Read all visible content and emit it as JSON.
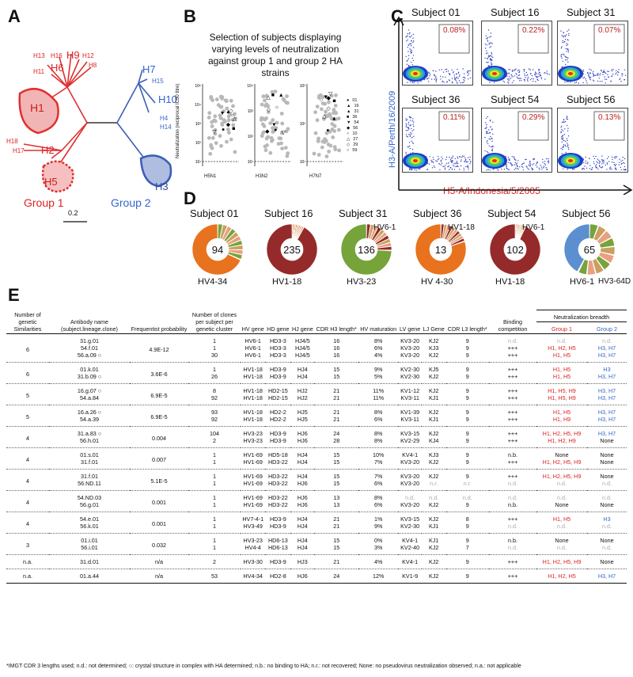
{
  "panels": {
    "a": "A",
    "b": "B",
    "c": "C",
    "d": "D",
    "e": "E"
  },
  "tree": {
    "labels": [
      "H13",
      "H16",
      "H9",
      "H12",
      "H11",
      "H6",
      "H8",
      "H1",
      "H18",
      "H17",
      "H2",
      "H5",
      "H7",
      "H15",
      "H10",
      "H4",
      "H14",
      "H3"
    ],
    "group1": "Group 1",
    "group2": "Group 2",
    "scale": "0.2",
    "colors": {
      "group1": "#e03030",
      "group2": "#3a5fb5"
    }
  },
  "panelB": {
    "title": "Selection of subjects displaying varying levels of neutralization against group 1 and group 2 HA strains",
    "ylabel": "Neutralization (reciprocal IC50 titre)",
    "strains": [
      "H5N1",
      "H3N2",
      "H7N7"
    ],
    "ticks": [
      [
        "10⁵",
        "10⁴",
        "10³",
        "10²",
        "10¹"
      ],
      [
        "10⁴",
        "10³",
        "10²",
        "10¹"
      ],
      [
        "10³",
        "10²",
        "10¹"
      ]
    ],
    "legend": [
      [
        "●",
        "01"
      ],
      [
        "▲",
        "16"
      ],
      [
        "▲",
        "31"
      ],
      [
        "■",
        "36"
      ],
      [
        "▼",
        "54"
      ],
      [
        "◆",
        "56"
      ],
      [
        "○",
        "10"
      ],
      [
        "△",
        "27"
      ],
      [
        "◇",
        "29"
      ],
      [
        "○",
        "59"
      ]
    ]
  },
  "panelC": {
    "subjects": [
      {
        "name": "Subject 01",
        "pct": "0.08%"
      },
      {
        "name": "Subject 16",
        "pct": "0.22%"
      },
      {
        "name": "Subject 31",
        "pct": "0.07%"
      },
      {
        "name": "Subject 36",
        "pct": "0.11%"
      },
      {
        "name": "Subject 54",
        "pct": "0.29%"
      },
      {
        "name": "Subject 56",
        "pct": "0.13%"
      }
    ],
    "yaxis": "H3-A/Perth/16/2009",
    "xaxis": "H5-A/Indonesia/5/2005"
  },
  "panelD": [
    {
      "name": "Subject 01",
      "n": "94",
      "main": "HV4-34",
      "main_color": "#e8721e",
      "call": ""
    },
    {
      "name": "Subject 16",
      "n": "235",
      "main": "HV1-18",
      "main_color": "#952a2a",
      "call": ""
    },
    {
      "name": "Subject 31",
      "n": "136",
      "main": "HV3-23",
      "main_color": "#76a33a",
      "call": "HV6-1"
    },
    {
      "name": "Subject 36",
      "n": "13",
      "main": "HV 4-30",
      "main_color": "#e8721e",
      "call": "HV1-18"
    },
    {
      "name": "Subject 54",
      "n": "102",
      "main": "HV1-18",
      "main_color": "#952a2a",
      "call": "HV6-1"
    },
    {
      "name": "Subject 56",
      "n": "65",
      "main": "HV6-1",
      "main_color": "#5b8fd0",
      "call": "HV3-64D"
    }
  ],
  "table": {
    "headers": {
      "sim": "Number of genetic Similarities",
      "name": "Antibody name (subject.lineage.clone)",
      "prob": "Frequentist probability",
      "clones": "Number of clones per subject per genetic cluster",
      "hv": "HV gene",
      "hd": "HD gene",
      "hj": "HJ gene",
      "cdrh3": "CDR H3 length*",
      "hvm": "HV maturation",
      "lv": "LV gene",
      "lj": "LJ Gene",
      "cdrl3": "CDR L3 length*",
      "bind": "Binding competition",
      "breadth": "Neutralization breadth",
      "g1": "Group 1",
      "g2": "Group 2"
    },
    "groups": [
      {
        "sim": "6",
        "prob": "4.9E-12",
        "rows": [
          [
            "31.g.01",
            "1",
            "HV6-1",
            "HD3-3",
            "HJ4/5",
            "16",
            "8%",
            "KV3-20",
            "KJ2",
            "9",
            "n.d.",
            "n.d.",
            "n.d."
          ],
          [
            "54.f.01",
            "1",
            "HV6-1",
            "HD3-3",
            "HJ4/5",
            "16",
            "6%",
            "KV3-20",
            "KJ3",
            "9",
            "+++",
            "H1, H2, H5",
            "H3, H7"
          ],
          [
            "56.a.09 ○",
            "30",
            "HV6-1",
            "HD3-3",
            "HJ4/5",
            "16",
            "4%",
            "KV3-20",
            "KJ2",
            "9",
            "+++",
            "H1, H5",
            "H3, H7"
          ]
        ]
      },
      {
        "sim": "6",
        "prob": "3.6E-6",
        "rows": [
          [
            "01.k.01",
            "1",
            "HV1-18",
            "HD3-9",
            "HJ4",
            "15",
            "9%",
            "KV2-30",
            "KJ5",
            "9",
            "+++",
            "H1, H5",
            "H3"
          ],
          [
            "31.b.09 ○",
            "26",
            "HV1-18",
            "HD3-9",
            "HJ4",
            "15",
            "5%",
            "KV2-30",
            "KJ2",
            "9",
            "+++",
            "H1, H5",
            "H3, H7"
          ]
        ]
      },
      {
        "sim": "5",
        "prob": "6.9E-5",
        "rows": [
          [
            "16.g.07 ○",
            "8",
            "HV1-18",
            "HD2-15",
            "HJ2",
            "21",
            "11%",
            "KV1-12",
            "KJ2",
            "9",
            "+++",
            "H1, H5, H9",
            "H3, H7"
          ],
          [
            "54.a.84",
            "92",
            "HV1-18",
            "HD2-15",
            "HJ2",
            "21",
            "11%",
            "KV3-11",
            "KJ1",
            "9",
            "+++",
            "H1, H5, H9",
            "H3, H7"
          ]
        ]
      },
      {
        "sim": "5",
        "prob": "6.9E-5",
        "rows": [
          [
            "16.a.26 ○",
            "93",
            "HV1-18",
            "HD2-2",
            "HJ5",
            "21",
            "8%",
            "KV1-39",
            "KJ2",
            "9",
            "+++",
            "H1, H5",
            "H3, H7"
          ],
          [
            "54.a.39",
            "92",
            "HV1-18",
            "HD2-2",
            "HJ5",
            "21",
            "6%",
            "KV3-11",
            "KJ1",
            "9",
            "+++",
            "H1, H9",
            "H3, H7"
          ]
        ]
      },
      {
        "sim": "4",
        "prob": "0.004",
        "rows": [
          [
            "31.a.83 ○",
            "104",
            "HV3-23",
            "HD3-9",
            "HJ6",
            "24",
            "8%",
            "KV3-15",
            "KJ2",
            "9",
            "+++",
            "H1, H2, H5, H9",
            "H3, H7"
          ],
          [
            "56.h.01",
            "2",
            "HV3-23",
            "HD3-9",
            "HJ6",
            "28",
            "8%",
            "KV2-29",
            "KJ4",
            "9",
            "+++",
            "H1, H2, H9",
            "None"
          ]
        ]
      },
      {
        "sim": "4",
        "prob": "0.007",
        "rows": [
          [
            "01.s.01",
            "1",
            "HV1-69",
            "HD5-18",
            "HJ4",
            "15",
            "10%",
            "KV4-1",
            "KJ3",
            "9",
            "n.b.",
            "None",
            "None"
          ],
          [
            "31.f.01",
            "1",
            "HV1-69",
            "HD3-22",
            "HJ4",
            "15",
            "7%",
            "KV3-20",
            "KJ2",
            "9",
            "+++",
            "H1, H2, H5, H9",
            "None"
          ]
        ]
      },
      {
        "sim": "4",
        "prob": "5.1E-5",
        "rows": [
          [
            "31.f.01",
            "1",
            "HV1-69",
            "HD3-22",
            "HJ4",
            "15",
            "7%",
            "KV3-20",
            "KJ2",
            "9",
            "+++",
            "H1, H2, H5, H9",
            "None"
          ],
          [
            "56.ND.11",
            "1",
            "HV1-69",
            "HD3-22",
            "HJ6",
            "15",
            "6%",
            "KV3-20",
            "n.r.",
            "n.r.",
            "n.d.",
            "n.d.",
            "n.d."
          ]
        ]
      },
      {
        "sim": "4",
        "prob": "0.001",
        "rows": [
          [
            "54.ND.03",
            "1",
            "HV1-69",
            "HD3-22",
            "HJ6",
            "13",
            "8%",
            "n.d.",
            "n.d.",
            "n.d.",
            "n.d.",
            "n.d.",
            "n.d."
          ],
          [
            "56.g.01",
            "1",
            "HV1-69",
            "HD3-22",
            "HJ6",
            "13",
            "6%",
            "KV3-20",
            "KJ2",
            "9",
            "n.b.",
            "None",
            "None"
          ]
        ]
      },
      {
        "sim": "4",
        "prob": "0.001",
        "rows": [
          [
            "54.e.01",
            "1",
            "HV7-4-1",
            "HD3-9",
            "HJ4",
            "21",
            "1%",
            "KV3-15",
            "KJ2",
            "8",
            "+++",
            "H1, H5",
            "H3"
          ],
          [
            "56.k.01",
            "1",
            "HV3-49",
            "HD3-9",
            "HJ4",
            "21",
            "9%",
            "KV2-30",
            "KJ1",
            "9",
            "n.d.",
            "n.d.",
            "n.d."
          ]
        ]
      },
      {
        "sim": "3",
        "prob": "0.032",
        "rows": [
          [
            "01.i.01",
            "1",
            "HV3-23",
            "HD6-13",
            "HJ4",
            "15",
            "0%",
            "KV4-1",
            "KJ1",
            "9",
            "n.b.",
            "None",
            "None"
          ],
          [
            "56.i.01",
            "1",
            "HV4-4",
            "HD6-13",
            "HJ4",
            "15",
            "3%",
            "KV2-40",
            "KJ2",
            "7",
            "n.d.",
            "n.d.",
            "n.d."
          ]
        ]
      },
      {
        "sim": "n.a.",
        "prob": "n/a",
        "rows": [
          [
            "31.d.01",
            "2",
            "HV3-30",
            "HD3-9",
            "HJ3",
            "21",
            "4%",
            "KV4-1",
            "KJ2",
            "9",
            "+++",
            "H1, H2, H5, H9",
            "None"
          ]
        ]
      },
      {
        "sim": "n.a.",
        "prob": "n/a",
        "rows": [
          [
            "01.a.44",
            "53",
            "HV4-34",
            "HD2-8",
            "HJ6",
            "24",
            "12%",
            "KV1-9",
            "KJ2",
            "9",
            "+++",
            "H1, H2, H5",
            "H3, H7"
          ]
        ]
      }
    ]
  },
  "footnote": "*IMGT CDR 3 lengths used; n.d.: not determined; ○: crystal structure in complex with HA determined; n.b.: no binding to HA; n.r.: not recovered; None: no pseudovirus neutralization observed; n.a.: not applicable"
}
